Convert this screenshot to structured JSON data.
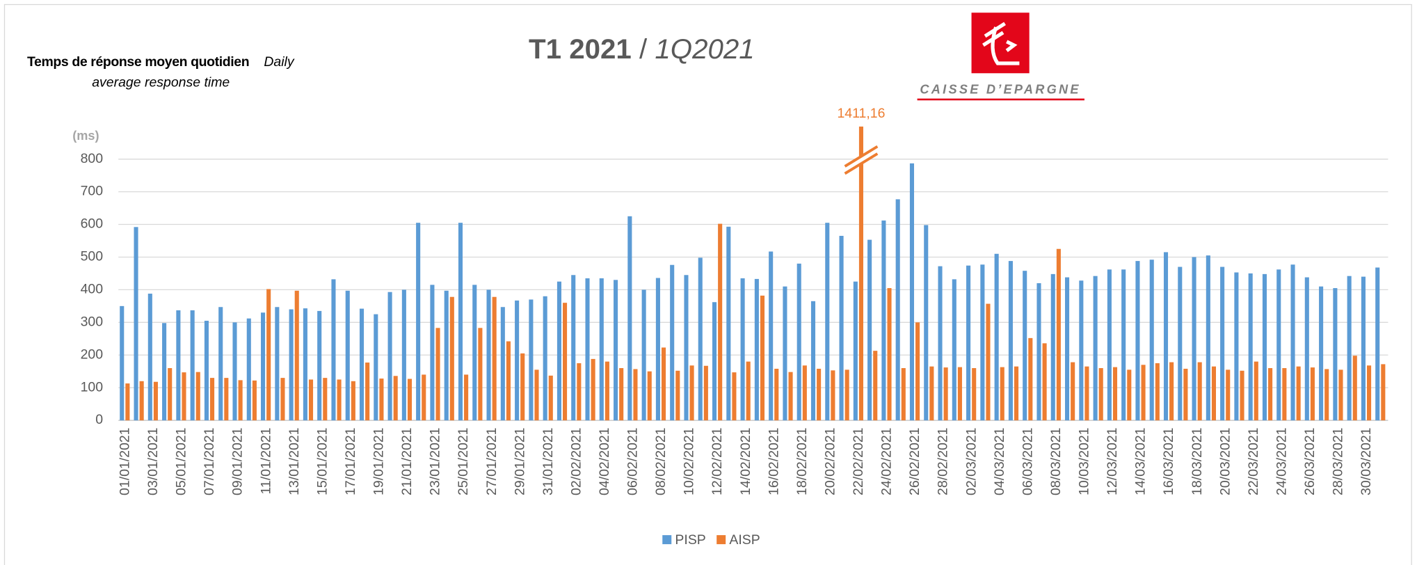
{
  "chart_data": {
    "type": "bar",
    "title": "T1 2021",
    "title_separator": "/",
    "title_english": "1Q2021",
    "subtitle": "Temps de réponse moyen quotidien",
    "subtitle_english": "Daily average response time",
    "y_label": "(ms)",
    "brand": "CAISSE D’EPARGNE",
    "categories": [
      "01/01/2021",
      null,
      "03/01/2021",
      null,
      "05/01/2021",
      null,
      "07/01/2021",
      null,
      "09/01/2021",
      null,
      "11/01/2021",
      null,
      "13/01/2021",
      null,
      "15/01/2021",
      null,
      "17/01/2021",
      null,
      "19/01/2021",
      null,
      "21/01/2021",
      null,
      "23/01/2021",
      null,
      "25/01/2021",
      null,
      "27/01/2021",
      null,
      "29/01/2021",
      null,
      "31/01/2021",
      null,
      "02/02/2021",
      null,
      "04/02/2021",
      null,
      "06/02/2021",
      null,
      "08/02/2021",
      null,
      "10/02/2021",
      null,
      "12/02/2021",
      null,
      "14/02/2021",
      null,
      "16/02/2021",
      null,
      "18/02/2021",
      null,
      "20/02/2021",
      null,
      "22/02/2021",
      null,
      "24/02/2021",
      null,
      "26/02/2021",
      null,
      "28/02/2021",
      null,
      "02/03/2021",
      null,
      "04/03/2021",
      null,
      "06/03/2021",
      null,
      "08/03/2021",
      null,
      "10/03/2021",
      null,
      "12/03/2021",
      null,
      "14/03/2021",
      null,
      "16/03/2021",
      null,
      "18/03/2021",
      null,
      "20/03/2021",
      null,
      "22/03/2021",
      null,
      "24/03/2021",
      null,
      "26/03/2021",
      null,
      "28/03/2021",
      null,
      "30/03/2021",
      null
    ],
    "series": [
      {
        "name": "PISP",
        "color": "#5b9bd5",
        "values": [
          350,
          592,
          388,
          298,
          337,
          337,
          305,
          347,
          300,
          312,
          330,
          347,
          340,
          343,
          335,
          432,
          397,
          342,
          325,
          393,
          400,
          605,
          415,
          397,
          605,
          415,
          400,
          347,
          367,
          370,
          380,
          425,
          445,
          435,
          435,
          430,
          625,
          400,
          436,
          476,
          445,
          498,
          362,
          593,
          435,
          433,
          517,
          410,
          480,
          365,
          605,
          565,
          425,
          553,
          612,
          677,
          787,
          598,
          472,
          432,
          474,
          477,
          510,
          488,
          458,
          420,
          448,
          438,
          428,
          442,
          462,
          462,
          488,
          492,
          515,
          470,
          500,
          505,
          470,
          453,
          450,
          448,
          462,
          477,
          438,
          410,
          405,
          442,
          440,
          468
        ]
      },
      {
        "name": "AISP",
        "color": "#ed7d31",
        "values": [
          113,
          120,
          118,
          160,
          147,
          148,
          130,
          130,
          123,
          122,
          402,
          130,
          397,
          125,
          130,
          125,
          120,
          177,
          128,
          136,
          127,
          140,
          283,
          378,
          140,
          283,
          378,
          242,
          205,
          155,
          137,
          360,
          175,
          188,
          180,
          160,
          157,
          150,
          223,
          152,
          168,
          167,
          602,
          147,
          180,
          382,
          158,
          148,
          168,
          158,
          153,
          155,
          1411.16,
          213,
          405,
          160,
          300,
          165,
          162,
          163,
          160,
          357,
          163,
          165,
          252,
          236,
          525,
          178,
          165,
          160,
          163,
          155,
          170,
          175,
          178,
          158,
          178,
          165,
          155,
          152,
          180,
          160,
          160,
          165,
          162,
          157,
          155,
          198,
          168,
          172
        ],
        "value_labels": [
          null,
          null,
          null,
          null,
          null,
          null,
          null,
          null,
          null,
          null,
          null,
          null,
          null,
          null,
          null,
          null,
          null,
          null,
          null,
          null,
          null,
          null,
          null,
          null,
          null,
          null,
          null,
          null,
          null,
          null,
          null,
          null,
          null,
          null,
          null,
          null,
          null,
          null,
          null,
          null,
          null,
          null,
          null,
          null,
          null,
          null,
          null,
          null,
          null,
          null,
          null,
          null,
          "1411,16",
          null,
          null,
          null,
          null,
          null,
          null,
          null,
          null,
          null,
          null,
          null,
          null,
          null,
          null,
          null,
          null,
          null,
          null,
          null,
          null,
          null,
          null,
          null,
          null,
          null,
          null,
          null,
          null,
          null,
          null,
          null,
          null,
          null,
          null,
          null,
          null,
          null
        ]
      }
    ],
    "ylim": [
      0,
      800
    ],
    "yticks": [
      0,
      100,
      200,
      300,
      400,
      500,
      600,
      700,
      800
    ],
    "grid": true,
    "legend": "bottom"
  }
}
